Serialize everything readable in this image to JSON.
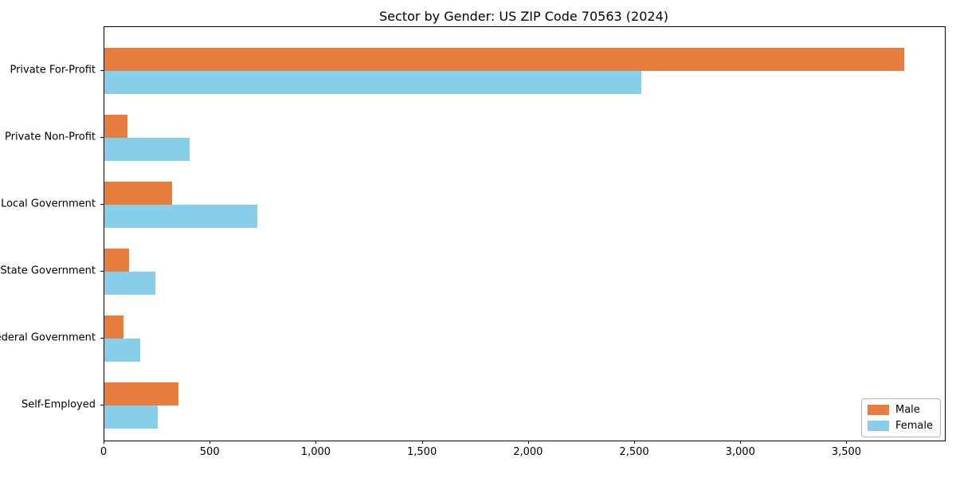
{
  "chart_data": {
    "type": "bar",
    "orientation": "horizontal",
    "title": "Sector by Gender: US ZIP Code 70563 (2024)",
    "categories": [
      "Private For-Profit",
      "Private Non-Profit",
      "Local Government",
      "State Government",
      "Federal Government",
      "Self-Employed"
    ],
    "series": [
      {
        "name": "Male",
        "color": "#e87e3e",
        "values": [
          3770,
          110,
          320,
          115,
          90,
          350
        ]
      },
      {
        "name": "Female",
        "color": "#87ceeb",
        "values": [
          2530,
          400,
          720,
          240,
          170,
          250
        ]
      }
    ],
    "xlim": [
      0,
      3960
    ],
    "xticks": [
      0,
      500,
      1000,
      1500,
      2000,
      2500,
      3000,
      3500
    ],
    "xtick_labels": [
      "0",
      "500",
      "1,000",
      "1,500",
      "2,000",
      "2,500",
      "3,000",
      "3,500"
    ],
    "ylabel": "",
    "xlabel": "",
    "grid": false,
    "legend_position": "lower right",
    "background_color": "#ffffff",
    "spine_color": "#000000"
  }
}
